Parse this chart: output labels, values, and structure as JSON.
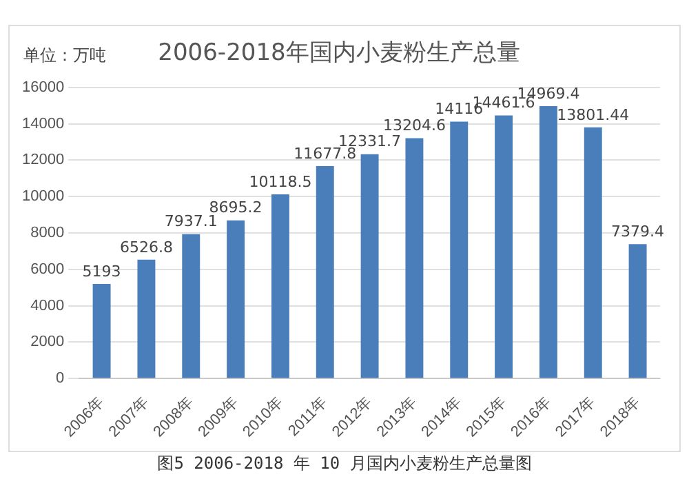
{
  "chart_data": {
    "type": "bar",
    "title": "2006-2018年国内小麦粉生产总量",
    "ylabel": "单位：万吨",
    "categories": [
      "2006年",
      "2007年",
      "2008年",
      "2009年",
      "2010年",
      "2011年",
      "2012年",
      "2013年",
      "2014年",
      "2015年",
      "2016年",
      "2017年",
      "2018年"
    ],
    "values": [
      5193,
      6526.8,
      7937.1,
      8695.2,
      10118.5,
      11677.8,
      12331.7,
      13204.6,
      14116,
      14461.6,
      14969.4,
      13801.44,
      7379.4
    ],
    "color": "#4a7ebb",
    "ylim": [
      0,
      16000
    ],
    "yticks": [
      0,
      2000,
      4000,
      6000,
      8000,
      10000,
      12000,
      14000,
      16000
    ],
    "grid": "y",
    "data_labels": true,
    "legend": false,
    "annotations": [
      "图5 2006-2018 年 10 月国内小麦粉生产总量图"
    ]
  }
}
